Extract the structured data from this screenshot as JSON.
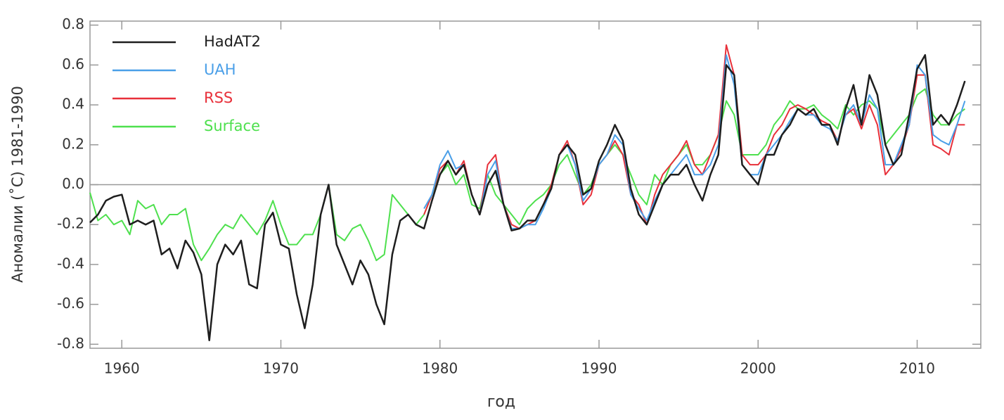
{
  "chart_data": {
    "type": "line",
    "xlabel": "год",
    "ylabel": "Аномалии (˚C) 1981-1990",
    "xlim": [
      1958,
      2014
    ],
    "ylim": [
      -0.82,
      0.82
    ],
    "xticks": [
      1960,
      1970,
      1980,
      1990,
      2000,
      2010
    ],
    "yticks": [
      -0.8,
      -0.6,
      -0.4,
      -0.2,
      {
        "value": 0,
        "label": "0.0"
      },
      0.2,
      0.4,
      0.6,
      0.8
    ],
    "legend": "upper-left",
    "x": [
      1958,
      1958.5,
      1959,
      1959.5,
      1960,
      1960.5,
      1961,
      1961.5,
      1962,
      1962.5,
      1963,
      1963.5,
      1964,
      1964.5,
      1965,
      1965.5,
      1966,
      1966.5,
      1967,
      1967.5,
      1968,
      1968.5,
      1969,
      1969.5,
      1970,
      1970.5,
      1971,
      1971.5,
      1972,
      1972.5,
      1973,
      1973.5,
      1974,
      1974.5,
      1975,
      1975.5,
      1976,
      1976.5,
      1977,
      1977.5,
      1978,
      1978.5,
      1979,
      1979.5,
      1980,
      1980.5,
      1981,
      1981.5,
      1982,
      1982.5,
      1983,
      1983.5,
      1984,
      1984.5,
      1985,
      1985.5,
      1986,
      1986.5,
      1987,
      1987.5,
      1988,
      1988.5,
      1989,
      1989.5,
      1990,
      1990.5,
      1991,
      1991.5,
      1992,
      1992.5,
      1993,
      1993.5,
      1994,
      1994.5,
      1995,
      1995.5,
      1996,
      1996.5,
      1997,
      1997.5,
      1998,
      1998.5,
      1999,
      1999.5,
      2000,
      2000.5,
      2001,
      2001.5,
      2002,
      2002.5,
      2003,
      2003.5,
      2004,
      2004.5,
      2005,
      2005.5,
      2006,
      2006.5,
      2007,
      2007.5,
      2008,
      2008.5,
      2009,
      2009.5,
      2010,
      2010.5,
      2011,
      2011.5,
      2012,
      2012.5,
      2013
    ],
    "series": [
      {
        "name": "HadAT2",
        "color": "#1e1e1e",
        "values": [
          -0.19,
          -0.15,
          -0.08,
          -0.06,
          -0.05,
          -0.2,
          -0.18,
          -0.2,
          -0.18,
          -0.35,
          -0.32,
          -0.42,
          -0.28,
          -0.34,
          -0.45,
          -0.78,
          -0.4,
          -0.3,
          -0.35,
          -0.28,
          -0.5,
          -0.52,
          -0.2,
          -0.14,
          -0.3,
          -0.32,
          -0.55,
          -0.72,
          -0.5,
          -0.15,
          0.0,
          -0.3,
          -0.4,
          -0.5,
          -0.38,
          -0.45,
          -0.6,
          -0.7,
          -0.35,
          -0.18,
          -0.15,
          -0.2,
          -0.22,
          -0.08,
          0.05,
          0.12,
          0.05,
          0.1,
          -0.05,
          -0.15,
          0.0,
          0.07,
          -0.1,
          -0.23,
          -0.22,
          -0.18,
          -0.18,
          -0.1,
          -0.02,
          0.15,
          0.2,
          0.15,
          -0.05,
          -0.02,
          0.12,
          0.2,
          0.3,
          0.22,
          -0.02,
          -0.15,
          -0.2,
          -0.1,
          0.0,
          0.05,
          0.05,
          0.1,
          0.0,
          -0.08,
          0.05,
          0.15,
          0.6,
          0.55,
          0.1,
          0.05,
          0.0,
          0.15,
          0.15,
          0.25,
          0.3,
          0.38,
          0.35,
          0.38,
          0.3,
          0.3,
          0.2,
          0.38,
          0.5,
          0.3,
          0.55,
          0.45,
          0.2,
          0.1,
          0.15,
          0.35,
          0.58,
          0.65,
          0.3,
          0.35,
          0.3,
          0.4,
          0.52
        ]
      },
      {
        "name": "UAH",
        "color": "#4a9fe8",
        "values": [
          null,
          null,
          null,
          null,
          null,
          null,
          null,
          null,
          null,
          null,
          null,
          null,
          null,
          null,
          null,
          null,
          null,
          null,
          null,
          null,
          null,
          null,
          null,
          null,
          null,
          null,
          null,
          null,
          null,
          null,
          null,
          null,
          null,
          null,
          null,
          null,
          null,
          null,
          null,
          null,
          null,
          null,
          -0.12,
          -0.05,
          0.1,
          0.17,
          0.08,
          0.1,
          -0.05,
          -0.15,
          0.05,
          0.12,
          -0.1,
          -0.22,
          -0.22,
          -0.2,
          -0.2,
          -0.12,
          -0.02,
          0.15,
          0.2,
          0.1,
          -0.08,
          -0.02,
          0.1,
          0.15,
          0.25,
          0.2,
          -0.05,
          -0.12,
          -0.18,
          -0.08,
          0.0,
          0.05,
          0.1,
          0.15,
          0.05,
          0.05,
          0.1,
          0.2,
          0.65,
          0.5,
          0.1,
          0.05,
          0.05,
          0.15,
          0.2,
          0.25,
          0.32,
          0.38,
          0.35,
          0.35,
          0.3,
          0.28,
          0.22,
          0.35,
          0.4,
          0.3,
          0.45,
          0.38,
          0.1,
          0.1,
          0.2,
          0.3,
          0.6,
          0.55,
          0.25,
          0.22,
          0.2,
          0.3,
          0.42
        ]
      },
      {
        "name": "RSS",
        "color": "#e8303a",
        "values": [
          null,
          null,
          null,
          null,
          null,
          null,
          null,
          null,
          null,
          null,
          null,
          null,
          null,
          null,
          null,
          null,
          null,
          null,
          null,
          null,
          null,
          null,
          null,
          null,
          null,
          null,
          null,
          null,
          null,
          null,
          null,
          null,
          null,
          null,
          null,
          null,
          null,
          null,
          null,
          null,
          null,
          null,
          -0.15,
          -0.05,
          0.08,
          0.12,
          0.05,
          0.12,
          -0.05,
          -0.15,
          0.1,
          0.15,
          -0.1,
          -0.2,
          -0.22,
          -0.2,
          -0.18,
          -0.1,
          0.0,
          0.15,
          0.22,
          0.1,
          -0.1,
          -0.05,
          0.1,
          0.15,
          0.22,
          0.15,
          -0.05,
          -0.1,
          -0.2,
          -0.05,
          0.05,
          0.1,
          0.15,
          0.22,
          0.1,
          0.05,
          0.15,
          0.25,
          0.7,
          0.55,
          0.15,
          0.1,
          0.1,
          0.15,
          0.25,
          0.3,
          0.38,
          0.4,
          0.38,
          0.35,
          0.32,
          0.3,
          0.22,
          0.35,
          0.38,
          0.28,
          0.4,
          0.3,
          0.05,
          0.1,
          0.18,
          0.3,
          0.55,
          0.55,
          0.2,
          0.18,
          0.15,
          0.3,
          0.3
        ]
      },
      {
        "name": "Surface",
        "color": "#4ee04e",
        "values": [
          -0.04,
          -0.18,
          -0.15,
          -0.2,
          -0.18,
          -0.25,
          -0.08,
          -0.12,
          -0.1,
          -0.2,
          -0.15,
          -0.15,
          -0.12,
          -0.3,
          -0.38,
          -0.32,
          -0.25,
          -0.2,
          -0.22,
          -0.15,
          -0.2,
          -0.25,
          -0.18,
          -0.08,
          -0.2,
          -0.3,
          -0.3,
          -0.25,
          -0.25,
          -0.15,
          0.0,
          -0.25,
          -0.28,
          -0.22,
          -0.2,
          -0.28,
          -0.38,
          -0.35,
          -0.05,
          -0.1,
          -0.15,
          -0.2,
          -0.15,
          -0.05,
          0.05,
          0.1,
          0.0,
          0.05,
          -0.1,
          -0.12,
          0.05,
          -0.05,
          -0.1,
          -0.15,
          -0.2,
          -0.12,
          -0.08,
          -0.05,
          0.0,
          0.1,
          0.15,
          0.05,
          -0.05,
          0.0,
          0.1,
          0.15,
          0.2,
          0.15,
          0.05,
          -0.05,
          -0.1,
          0.05,
          0.0,
          0.1,
          0.15,
          0.2,
          0.1,
          0.1,
          0.15,
          0.25,
          0.42,
          0.35,
          0.15,
          0.15,
          0.15,
          0.2,
          0.3,
          0.35,
          0.42,
          0.38,
          0.38,
          0.4,
          0.35,
          0.32,
          0.28,
          0.4,
          0.35,
          0.4,
          0.42,
          0.38,
          0.2,
          0.25,
          0.3,
          0.35,
          0.45,
          0.48,
          0.35,
          0.3,
          0.3,
          0.35,
          0.38
        ]
      }
    ]
  }
}
